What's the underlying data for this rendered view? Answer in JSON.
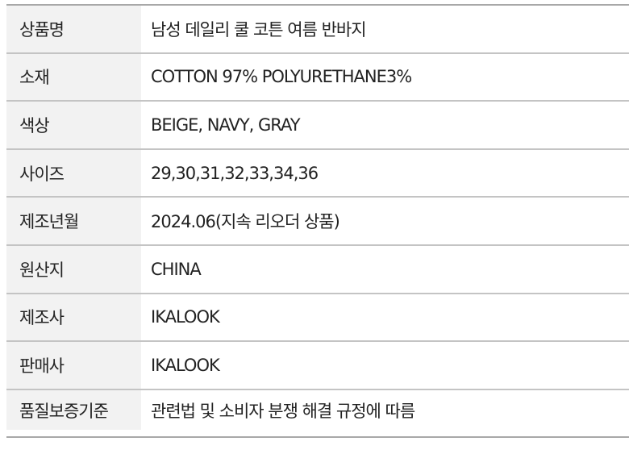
{
  "rows": [
    {
      "label": "상품명",
      "value": "남성 데일리 쿨 코튼 여름 반바지"
    },
    {
      "label": "소재",
      "value": "COTTON 97% POLYURETHANE3%"
    },
    {
      "label": "색상",
      "value": "BEIGE, NAVY, GRAY"
    },
    {
      "label": "사이즈",
      "value": "29,30,31,32,33,34,36"
    },
    {
      "label": "제조년월",
      "value": "2024.06(지속 리오더 상품)"
    },
    {
      "label": "원산지",
      "value": "CHINA"
    },
    {
      "label": "제조사",
      "value": "IKALOOK"
    },
    {
      "label": "판매사",
      "value": "IKALOOK"
    },
    {
      "label": "품질보증기준",
      "value": "관련법 및 소비자 분쟁 해결 규정에 따름"
    }
  ]
}
